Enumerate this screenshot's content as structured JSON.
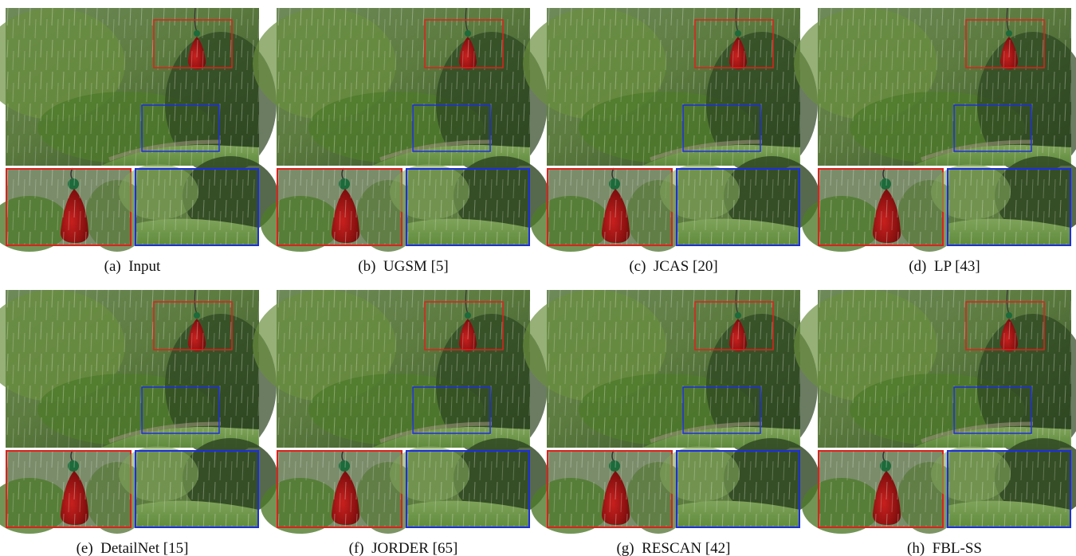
{
  "captions": [
    "(a)  Input",
    "(b)  UGSM [5]",
    "(c)  JCAS [20]",
    "(d)  LP [43]",
    "(e)  DetailNet [15]",
    "(f)  JORDER [65]",
    "(g)  RESCAN [42]",
    "(h)  FBL-SS"
  ]
}
